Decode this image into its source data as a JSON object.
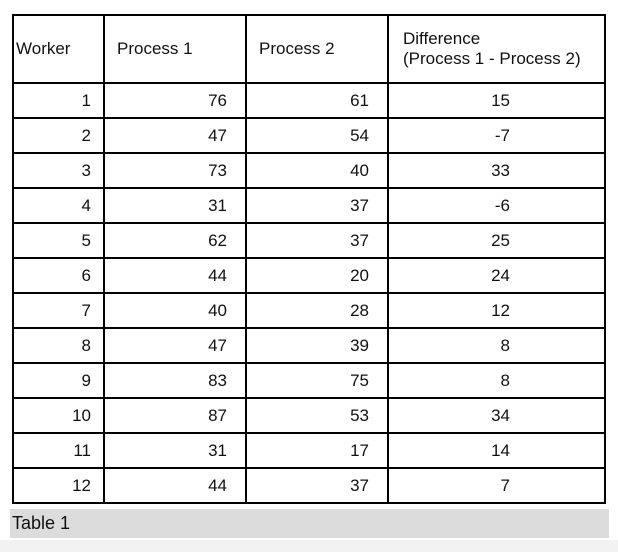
{
  "table": {
    "headers": [
      "Worker",
      "Process 1",
      "Process 2",
      "Difference\n(Process 1 - Process 2)"
    ],
    "header_diff_line1": "Difference",
    "header_diff_line2": "(Process 1 - Process 2)",
    "rows": [
      [
        "1",
        "76",
        "61",
        "15"
      ],
      [
        "2",
        "47",
        "54",
        "-7"
      ],
      [
        "3",
        "73",
        "40",
        "33"
      ],
      [
        "4",
        "31",
        "37",
        "-6"
      ],
      [
        "5",
        "62",
        "37",
        "25"
      ],
      [
        "6",
        "44",
        "20",
        "24"
      ],
      [
        "7",
        "40",
        "28",
        "12"
      ],
      [
        "8",
        "47",
        "39",
        "8"
      ],
      [
        "9",
        "83",
        "75",
        "8"
      ],
      [
        "10",
        "87",
        "53",
        "34"
      ],
      [
        "11",
        "31",
        "17",
        "14"
      ],
      [
        "12",
        "44",
        "37",
        "7"
      ]
    ]
  },
  "caption": "Table 1"
}
